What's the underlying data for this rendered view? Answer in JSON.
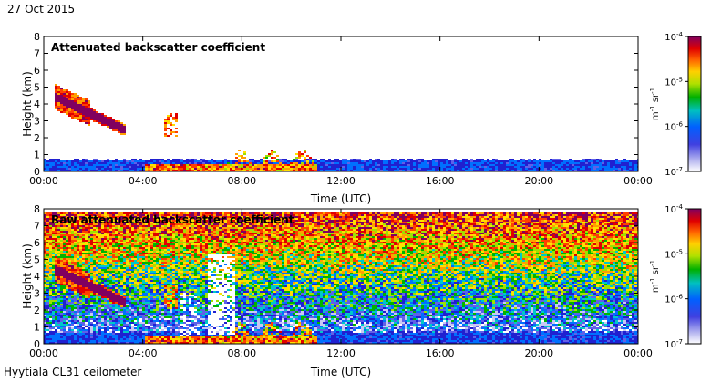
{
  "date": "27 Oct 2015",
  "footer": "Hyytiala CL31 ceilometer",
  "chart_data": [
    {
      "type": "heatmap",
      "title": "Attenuated backscatter coefficient",
      "xlabel": "Time (UTC)",
      "ylabel": "Height (km)",
      "x_ticks": [
        "00:00",
        "04:00",
        "08:00",
        "12:00",
        "16:00",
        "20:00",
        "00:00"
      ],
      "x_range_hours": [
        0,
        24
      ],
      "y_ticks": [
        0,
        1,
        2,
        3,
        4,
        5,
        6,
        7,
        8
      ],
      "ylim": [
        0,
        8
      ],
      "colorbar": {
        "scale": "log",
        "range": [
          1e-07,
          0.0001
        ],
        "ticks": [
          "10-7",
          "10-6",
          "10-5",
          "10-4"
        ],
        "label": "m-1 sr-1"
      }
    },
    {
      "type": "heatmap",
      "title": "Raw attenuated backscatter coefficient",
      "xlabel": "Time (UTC)",
      "ylabel": "Height (km)",
      "x_ticks": [
        "00:00",
        "04:00",
        "08:00",
        "12:00",
        "16:00",
        "20:00",
        "00:00"
      ],
      "x_range_hours": [
        0,
        24
      ],
      "y_ticks": [
        0,
        1,
        2,
        3,
        4,
        5,
        6,
        7,
        8
      ],
      "ylim": [
        0,
        8
      ],
      "colorbar": {
        "scale": "log",
        "range": [
          1e-07,
          0.0001
        ],
        "ticks": [
          "10-7",
          "10-6",
          "10-5",
          "10-4"
        ],
        "label": "m-1 sr-1"
      }
    }
  ]
}
